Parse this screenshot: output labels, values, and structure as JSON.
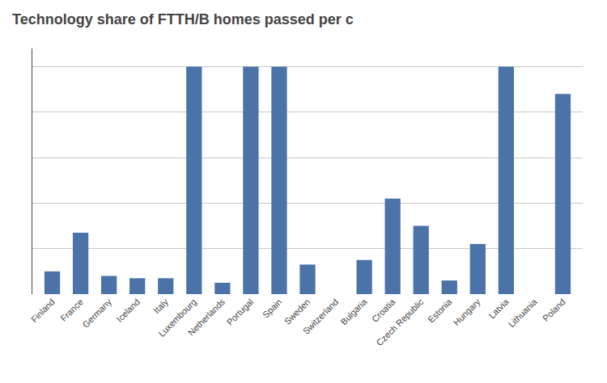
{
  "chart_data": {
    "type": "bar",
    "title": "Technology share of FTTH/B homes passed per c",
    "categories": [
      "Finland",
      "France",
      "Germany",
      "Iceland",
      "Italy",
      "Luxembourg",
      "Netherlands",
      "Portugal",
      "Spain",
      "Sweden",
      "Switzerland",
      "Bulgaria",
      "Croatia",
      "Czech Republic",
      "Estonia",
      "Hungary",
      "Latvia",
      "Lithuania",
      "Poland"
    ],
    "values": [
      10,
      27,
      8,
      7,
      7,
      100,
      5,
      100,
      100,
      13,
      0,
      15,
      42,
      30,
      6,
      22,
      100,
      0,
      88
    ],
    "color": "#4b73a8",
    "ylim": [
      0,
      108
    ],
    "yticks": [
      0,
      20,
      40,
      60,
      80,
      100
    ],
    "grid": true,
    "tick_labels": "x"
  }
}
